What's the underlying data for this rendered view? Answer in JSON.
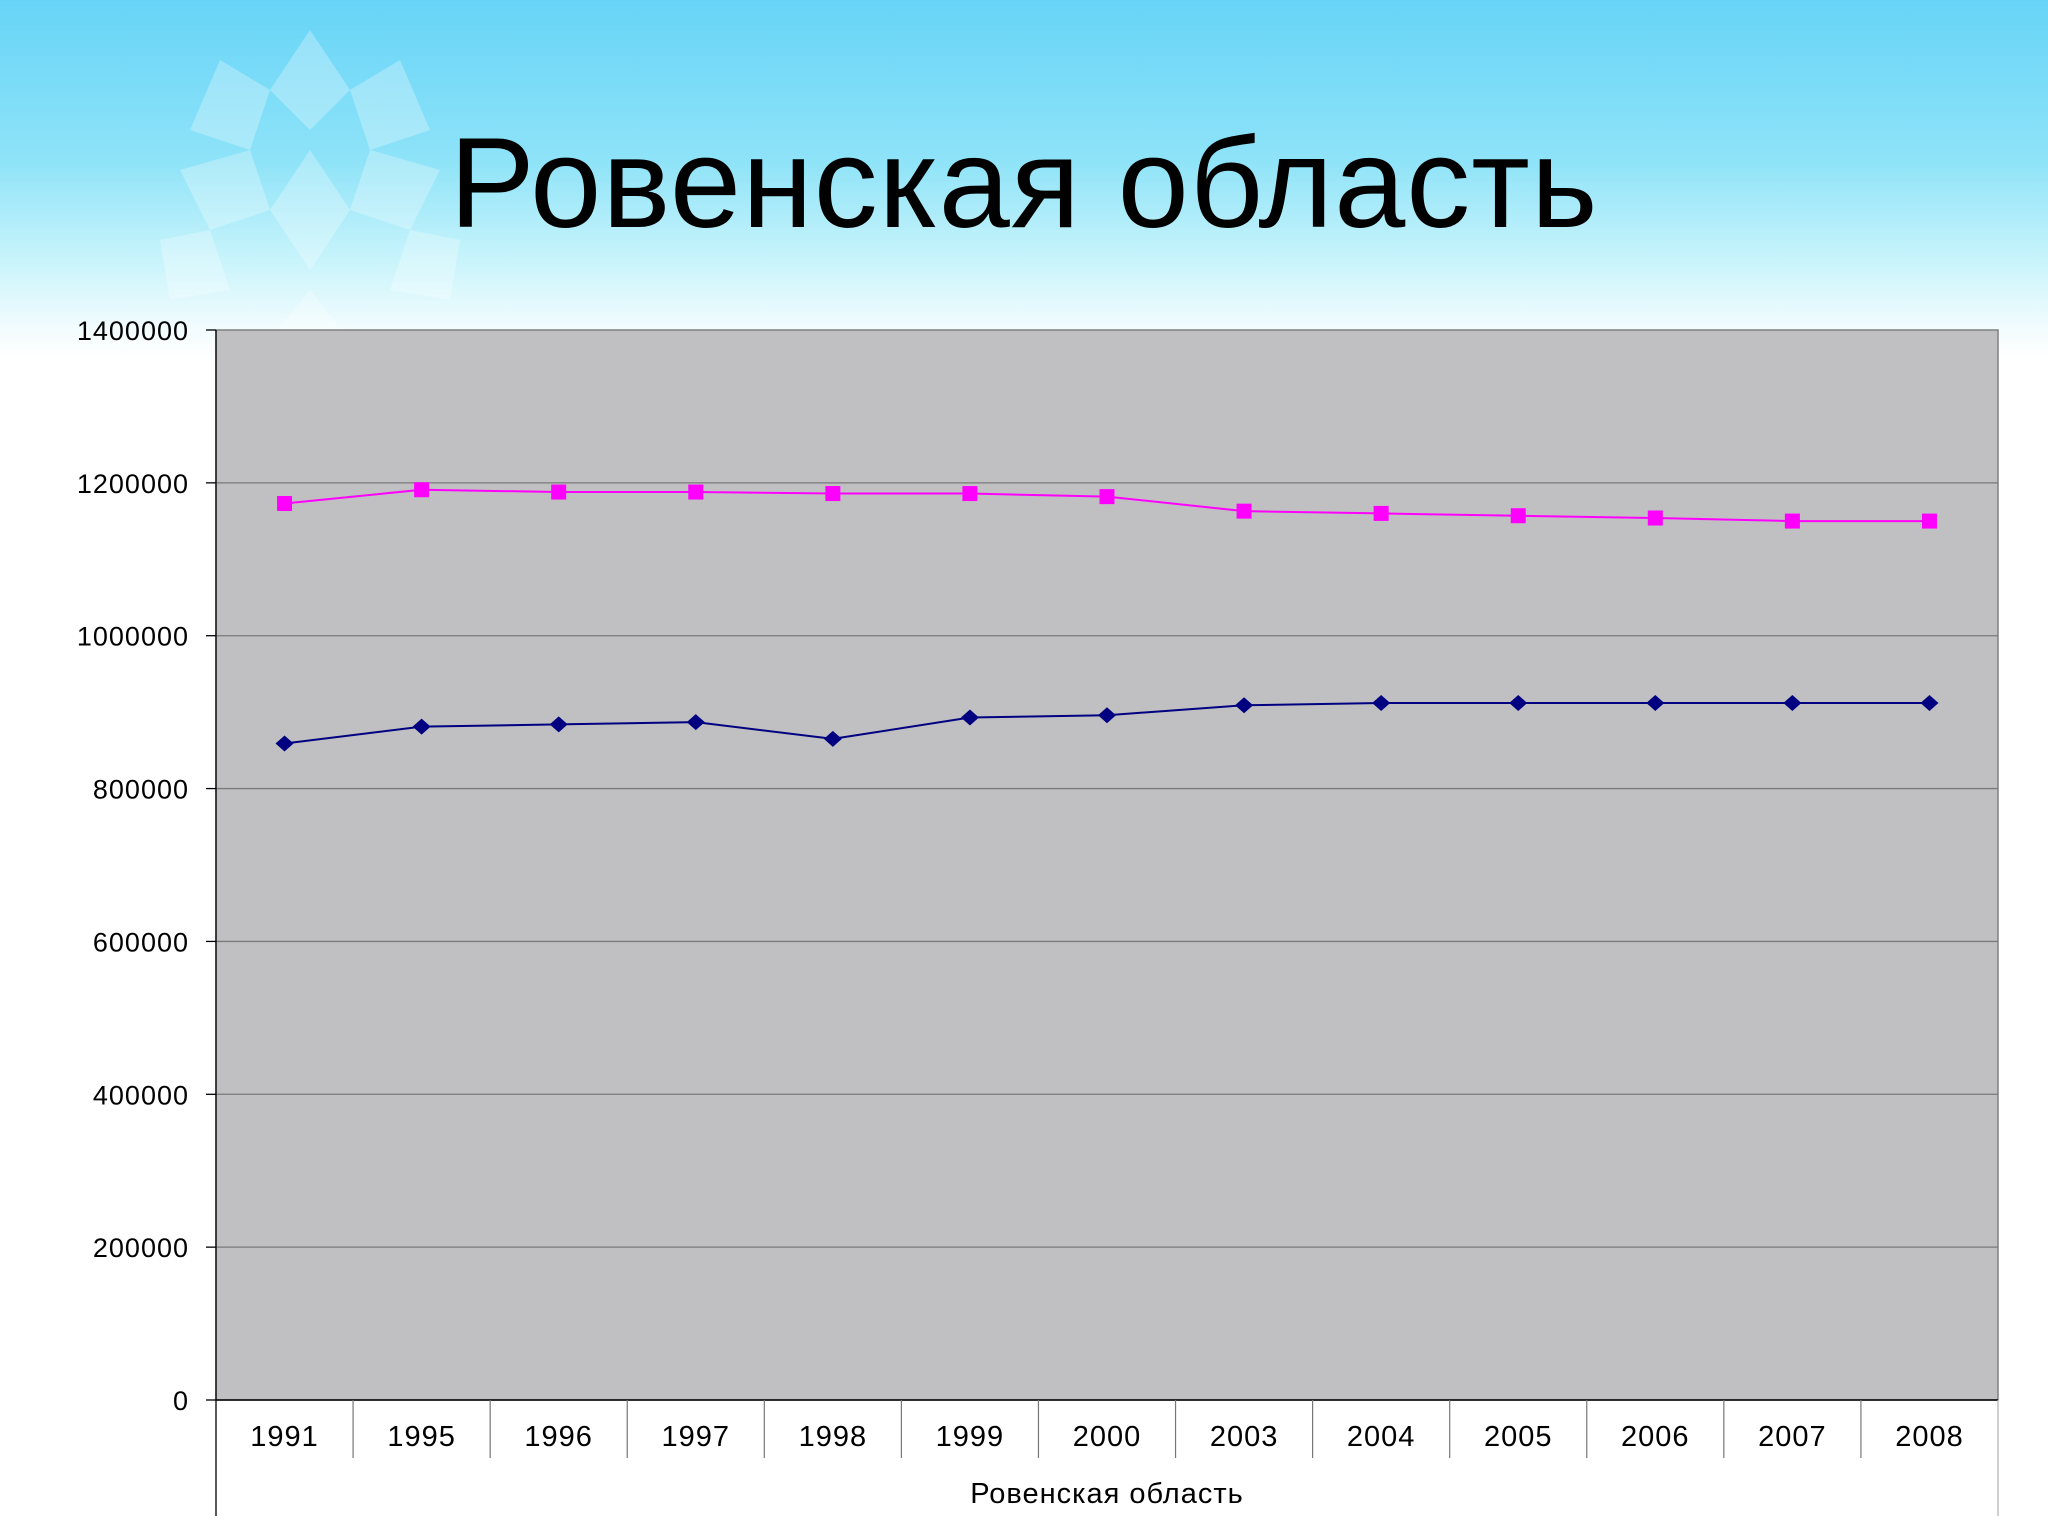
{
  "slide": {
    "title": "Ровенская область"
  },
  "colors": {
    "plot_background": "#c0bfc2",
    "series_1": "#000080",
    "series_2": "#ff00ff"
  },
  "chart_data": {
    "type": "line",
    "categories": [
      "1991",
      "1995",
      "1996",
      "1997",
      "1998",
      "1999",
      "2000",
      "2003",
      "2004",
      "2005",
      "2006",
      "2007",
      "2008"
    ],
    "series": [
      {
        "values": [
          859000,
          881000,
          884000,
          887000,
          865000,
          893000,
          896000,
          909000,
          912000,
          912000,
          912000,
          912000,
          912000
        ],
        "color": "#000080",
        "marker": "diamond"
      },
      {
        "values": [
          1173000,
          1191000,
          1188000,
          1188000,
          1186000,
          1186000,
          1182000,
          1163000,
          1160000,
          1157000,
          1154000,
          1150000,
          1150000
        ],
        "color": "#ff00ff",
        "marker": "square"
      }
    ],
    "xlabel": "Ровенская область",
    "ylabel": "",
    "ylim": [
      0,
      1400000
    ],
    "yticks": [
      "0",
      "200000",
      "400000",
      "600000",
      "800000",
      "1000000",
      "1200000",
      "1400000"
    ],
    "grid": true
  }
}
